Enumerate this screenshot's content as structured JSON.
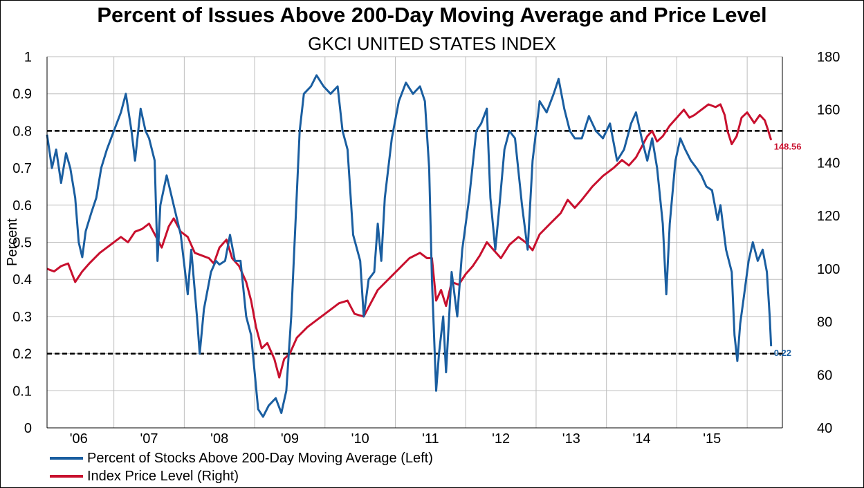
{
  "chart_data": {
    "type": "line",
    "title": "Percent of Issues Above 200-Day Moving Average and Price Level",
    "subtitle": "GKCI UNITED STATES INDEX",
    "ylabel_left": "Percent",
    "ylim_left": [
      0,
      1
    ],
    "yticks_left": [
      "0",
      "0.1",
      "0.2",
      "0.3",
      "0.4",
      "0.5",
      "0.6",
      "0.7",
      "0.8",
      "0.9",
      "1"
    ],
    "ylim_right": [
      40,
      180
    ],
    "yticks_right": [
      "40",
      "60",
      "80",
      "100",
      "120",
      "140",
      "160",
      "180"
    ],
    "xlim": [
      2005.55,
      2016.0
    ],
    "xticks": [
      {
        "label": "'06",
        "x": 2006
      },
      {
        "label": "'07",
        "x": 2007
      },
      {
        "label": "'08",
        "x": 2008
      },
      {
        "label": "'09",
        "x": 2009
      },
      {
        "label": "'10",
        "x": 2010
      },
      {
        "label": "'11",
        "x": 2011
      },
      {
        "label": "'12",
        "x": 2012
      },
      {
        "label": "'13",
        "x": 2013
      },
      {
        "label": "'14",
        "x": 2014
      },
      {
        "label": "'15",
        "x": 2015
      }
    ],
    "grid": true,
    "legend_position": "bottom-left",
    "reference_lines": [
      {
        "axis": "left",
        "value": 0.8
      },
      {
        "axis": "left",
        "value": 0.2
      }
    ],
    "series": [
      {
        "name": "Percent of Stocks Above 200-Day Moving Average  (Left)",
        "axis": "left",
        "color": "#1a5ea0",
        "end_label": "0.22",
        "points": [
          [
            2005.55,
            0.79
          ],
          [
            2005.62,
            0.7
          ],
          [
            2005.68,
            0.75
          ],
          [
            2005.75,
            0.66
          ],
          [
            2005.82,
            0.74
          ],
          [
            2005.88,
            0.7
          ],
          [
            2005.95,
            0.62
          ],
          [
            2006.0,
            0.5
          ],
          [
            2006.05,
            0.46
          ],
          [
            2006.1,
            0.53
          ],
          [
            2006.18,
            0.58
          ],
          [
            2006.25,
            0.62
          ],
          [
            2006.32,
            0.7
          ],
          [
            2006.4,
            0.75
          ],
          [
            2006.5,
            0.8
          ],
          [
            2006.6,
            0.85
          ],
          [
            2006.67,
            0.9
          ],
          [
            2006.75,
            0.8
          ],
          [
            2006.8,
            0.72
          ],
          [
            2006.88,
            0.86
          ],
          [
            2006.95,
            0.8
          ],
          [
            2007.0,
            0.78
          ],
          [
            2007.08,
            0.72
          ],
          [
            2007.12,
            0.45
          ],
          [
            2007.16,
            0.6
          ],
          [
            2007.25,
            0.68
          ],
          [
            2007.35,
            0.6
          ],
          [
            2007.45,
            0.52
          ],
          [
            2007.55,
            0.36
          ],
          [
            2007.6,
            0.48
          ],
          [
            2007.68,
            0.3
          ],
          [
            2007.72,
            0.2
          ],
          [
            2007.78,
            0.32
          ],
          [
            2007.88,
            0.42
          ],
          [
            2007.95,
            0.45
          ],
          [
            2008.0,
            0.44
          ],
          [
            2008.08,
            0.45
          ],
          [
            2008.15,
            0.52
          ],
          [
            2008.22,
            0.45
          ],
          [
            2008.3,
            0.45
          ],
          [
            2008.38,
            0.3
          ],
          [
            2008.45,
            0.25
          ],
          [
            2008.5,
            0.15
          ],
          [
            2008.55,
            0.05
          ],
          [
            2008.62,
            0.03
          ],
          [
            2008.7,
            0.06
          ],
          [
            2008.8,
            0.08
          ],
          [
            2008.88,
            0.04
          ],
          [
            2008.95,
            0.1
          ],
          [
            2009.02,
            0.3
          ],
          [
            2009.08,
            0.55
          ],
          [
            2009.14,
            0.8
          ],
          [
            2009.2,
            0.9
          ],
          [
            2009.3,
            0.92
          ],
          [
            2009.38,
            0.95
          ],
          [
            2009.48,
            0.92
          ],
          [
            2009.58,
            0.9
          ],
          [
            2009.68,
            0.92
          ],
          [
            2009.75,
            0.8
          ],
          [
            2009.82,
            0.75
          ],
          [
            2009.9,
            0.52
          ],
          [
            2010.0,
            0.45
          ],
          [
            2010.05,
            0.3
          ],
          [
            2010.12,
            0.4
          ],
          [
            2010.2,
            0.42
          ],
          [
            2010.25,
            0.55
          ],
          [
            2010.3,
            0.45
          ],
          [
            2010.35,
            0.62
          ],
          [
            2010.45,
            0.78
          ],
          [
            2010.55,
            0.88
          ],
          [
            2010.65,
            0.93
          ],
          [
            2010.75,
            0.9
          ],
          [
            2010.85,
            0.92
          ],
          [
            2010.92,
            0.88
          ],
          [
            2010.98,
            0.7
          ],
          [
            2011.02,
            0.4
          ],
          [
            2011.08,
            0.1
          ],
          [
            2011.12,
            0.2
          ],
          [
            2011.18,
            0.3
          ],
          [
            2011.22,
            0.15
          ],
          [
            2011.3,
            0.42
          ],
          [
            2011.38,
            0.3
          ],
          [
            2011.45,
            0.48
          ],
          [
            2011.55,
            0.62
          ],
          [
            2011.65,
            0.8
          ],
          [
            2011.72,
            0.82
          ],
          [
            2011.8,
            0.86
          ],
          [
            2011.85,
            0.62
          ],
          [
            2011.92,
            0.48
          ],
          [
            2011.98,
            0.6
          ],
          [
            2012.05,
            0.75
          ],
          [
            2012.12,
            0.8
          ],
          [
            2012.2,
            0.78
          ],
          [
            2012.3,
            0.6
          ],
          [
            2012.38,
            0.48
          ],
          [
            2012.45,
            0.72
          ],
          [
            2012.55,
            0.88
          ],
          [
            2012.65,
            0.85
          ],
          [
            2012.75,
            0.9
          ],
          [
            2012.82,
            0.94
          ],
          [
            2012.9,
            0.86
          ],
          [
            2012.98,
            0.8
          ],
          [
            2013.05,
            0.78
          ],
          [
            2013.15,
            0.78
          ],
          [
            2013.25,
            0.84
          ],
          [
            2013.35,
            0.8
          ],
          [
            2013.45,
            0.78
          ],
          [
            2013.55,
            0.82
          ],
          [
            2013.65,
            0.72
          ],
          [
            2013.75,
            0.75
          ],
          [
            2013.85,
            0.82
          ],
          [
            2013.92,
            0.85
          ],
          [
            2014.0,
            0.78
          ],
          [
            2014.08,
            0.72
          ],
          [
            2014.15,
            0.78
          ],
          [
            2014.22,
            0.7
          ],
          [
            2014.3,
            0.55
          ],
          [
            2014.35,
            0.36
          ],
          [
            2014.4,
            0.55
          ],
          [
            2014.48,
            0.72
          ],
          [
            2014.55,
            0.78
          ],
          [
            2014.62,
            0.75
          ],
          [
            2014.7,
            0.72
          ],
          [
            2014.78,
            0.7
          ],
          [
            2014.85,
            0.68
          ],
          [
            2014.92,
            0.65
          ],
          [
            2015.0,
            0.64
          ],
          [
            2015.08,
            0.56
          ],
          [
            2015.12,
            0.6
          ],
          [
            2015.2,
            0.48
          ],
          [
            2015.28,
            0.42
          ],
          [
            2015.32,
            0.25
          ],
          [
            2015.36,
            0.18
          ],
          [
            2015.4,
            0.28
          ],
          [
            2015.45,
            0.35
          ],
          [
            2015.52,
            0.45
          ],
          [
            2015.58,
            0.5
          ],
          [
            2015.65,
            0.45
          ],
          [
            2015.72,
            0.48
          ],
          [
            2015.78,
            0.42
          ],
          [
            2015.82,
            0.3
          ],
          [
            2015.84,
            0.22
          ]
        ]
      },
      {
        "name": "Index Price Level  (Right)",
        "axis": "right",
        "color": "#c8102e",
        "end_label": "148.56",
        "points": [
          [
            2005.55,
            100
          ],
          [
            2005.65,
            99
          ],
          [
            2005.75,
            101
          ],
          [
            2005.85,
            102
          ],
          [
            2005.95,
            95
          ],
          [
            2006.05,
            99
          ],
          [
            2006.15,
            102
          ],
          [
            2006.3,
            106
          ],
          [
            2006.45,
            109
          ],
          [
            2006.6,
            112
          ],
          [
            2006.7,
            110
          ],
          [
            2006.8,
            114
          ],
          [
            2006.9,
            115
          ],
          [
            2007.0,
            117
          ],
          [
            2007.1,
            112
          ],
          [
            2007.18,
            108
          ],
          [
            2007.28,
            116
          ],
          [
            2007.35,
            119
          ],
          [
            2007.45,
            114
          ],
          [
            2007.55,
            112
          ],
          [
            2007.65,
            106
          ],
          [
            2007.75,
            105
          ],
          [
            2007.85,
            104
          ],
          [
            2007.92,
            102
          ],
          [
            2008.0,
            108
          ],
          [
            2008.1,
            111
          ],
          [
            2008.18,
            104
          ],
          [
            2008.28,
            101
          ],
          [
            2008.38,
            95
          ],
          [
            2008.45,
            88
          ],
          [
            2008.52,
            78
          ],
          [
            2008.6,
            70
          ],
          [
            2008.68,
            72
          ],
          [
            2008.78,
            66
          ],
          [
            2008.85,
            59
          ],
          [
            2008.92,
            66
          ],
          [
            2009.0,
            68
          ],
          [
            2009.1,
            74
          ],
          [
            2009.25,
            78
          ],
          [
            2009.4,
            81
          ],
          [
            2009.55,
            84
          ],
          [
            2009.7,
            87
          ],
          [
            2009.82,
            88
          ],
          [
            2009.92,
            83
          ],
          [
            2010.05,
            82
          ],
          [
            2010.15,
            87
          ],
          [
            2010.25,
            92
          ],
          [
            2010.4,
            96
          ],
          [
            2010.55,
            100
          ],
          [
            2010.7,
            104
          ],
          [
            2010.85,
            106
          ],
          [
            2010.95,
            104
          ],
          [
            2011.02,
            104
          ],
          [
            2011.08,
            88
          ],
          [
            2011.15,
            92
          ],
          [
            2011.22,
            86
          ],
          [
            2011.3,
            95
          ],
          [
            2011.4,
            94
          ],
          [
            2011.5,
            98
          ],
          [
            2011.6,
            101
          ],
          [
            2011.7,
            105
          ],
          [
            2011.8,
            110
          ],
          [
            2011.9,
            107
          ],
          [
            2012.0,
            104
          ],
          [
            2012.12,
            109
          ],
          [
            2012.25,
            112
          ],
          [
            2012.35,
            110
          ],
          [
            2012.45,
            107
          ],
          [
            2012.55,
            113
          ],
          [
            2012.7,
            117
          ],
          [
            2012.85,
            121
          ],
          [
            2012.95,
            126
          ],
          [
            2013.05,
            123
          ],
          [
            2013.15,
            126
          ],
          [
            2013.3,
            131
          ],
          [
            2013.45,
            135
          ],
          [
            2013.6,
            138
          ],
          [
            2013.72,
            141
          ],
          [
            2013.82,
            139
          ],
          [
            2013.92,
            142
          ],
          [
            2014.0,
            146
          ],
          [
            2014.08,
            150
          ],
          [
            2014.15,
            152
          ],
          [
            2014.22,
            148
          ],
          [
            2014.3,
            150
          ],
          [
            2014.4,
            154
          ],
          [
            2014.5,
            157
          ],
          [
            2014.6,
            160
          ],
          [
            2014.68,
            157
          ],
          [
            2014.75,
            158
          ],
          [
            2014.85,
            160
          ],
          [
            2014.95,
            162
          ],
          [
            2015.05,
            161
          ],
          [
            2015.12,
            162
          ],
          [
            2015.18,
            158
          ],
          [
            2015.22,
            152
          ],
          [
            2015.28,
            147
          ],
          [
            2015.35,
            150
          ],
          [
            2015.42,
            157
          ],
          [
            2015.5,
            159
          ],
          [
            2015.6,
            155
          ],
          [
            2015.68,
            158
          ],
          [
            2015.75,
            156
          ],
          [
            2015.8,
            152
          ],
          [
            2015.84,
            148.56
          ]
        ]
      }
    ]
  }
}
